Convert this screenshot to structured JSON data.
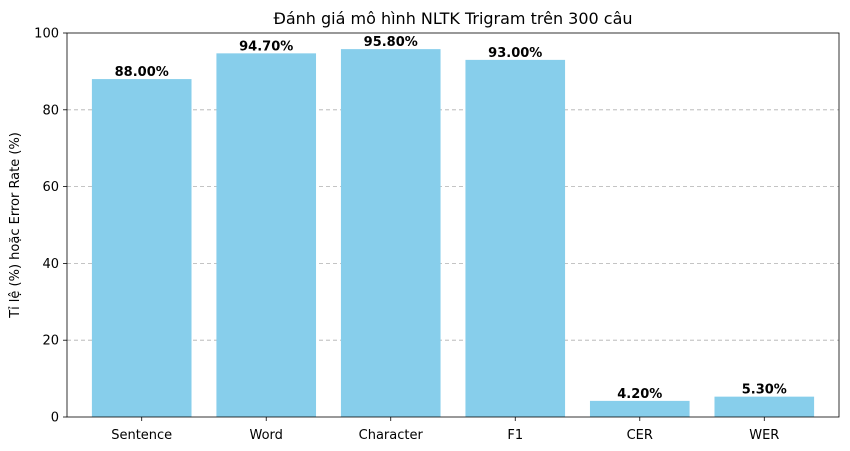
{
  "chart_data": {
    "type": "bar",
    "title": "Đánh giá mô hình NLTK Trigram trên 300 câu",
    "xlabel": "",
    "ylabel": "Tỉ lệ (%) hoặc Error Rate (%)",
    "categories": [
      "Sentence",
      "Word",
      "Character",
      "F1",
      "CER",
      "WER"
    ],
    "values": [
      88.0,
      94.7,
      95.8,
      93.0,
      4.2,
      5.3
    ],
    "data_labels": [
      "88.00%",
      "94.70%",
      "95.80%",
      "93.00%",
      "4.20%",
      "5.30%"
    ],
    "ylim": [
      0,
      100
    ],
    "yticks": [
      0,
      20,
      40,
      60,
      80,
      100
    ],
    "ytick_labels": [
      "0",
      "20",
      "40",
      "60",
      "80",
      "100"
    ],
    "grid": "y-dashed",
    "bar_color": "#87ceeb"
  }
}
